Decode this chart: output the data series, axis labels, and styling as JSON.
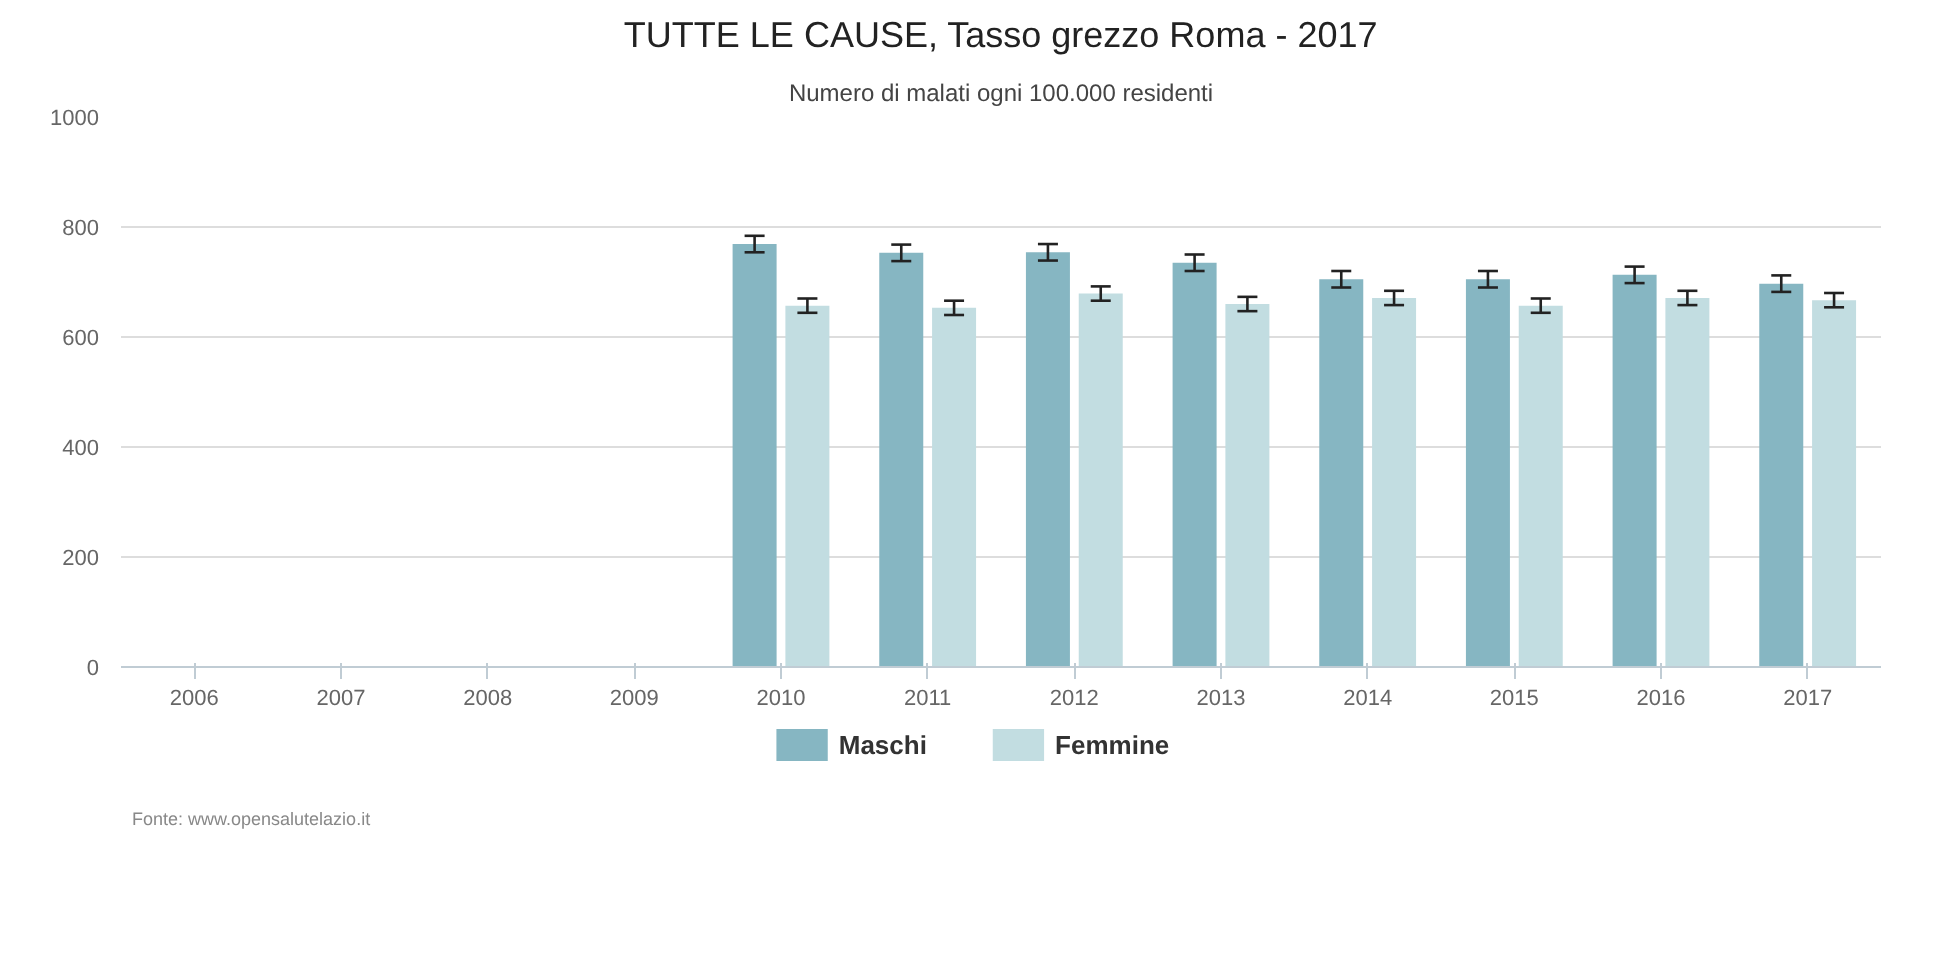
{
  "chart_data": {
    "type": "bar",
    "title": "TUTTE LE CAUSE, Tasso grezzo Roma - 2017",
    "subtitle": "Numero di malati ogni 100.000 residenti",
    "categories": [
      "2006",
      "2007",
      "2008",
      "2009",
      "2010",
      "2011",
      "2012",
      "2013",
      "2014",
      "2015",
      "2016",
      "2017"
    ],
    "series": [
      {
        "name": "Maschi",
        "color": "#86b6c2",
        "values": [
          null,
          null,
          null,
          null,
          769,
          753,
          754,
          735,
          705,
          705,
          713,
          697
        ],
        "errors": [
          null,
          null,
          null,
          null,
          15,
          15,
          15,
          15,
          15,
          15,
          15,
          15
        ]
      },
      {
        "name": "Femmine",
        "color": "#c2dde1",
        "values": [
          null,
          null,
          null,
          null,
          657,
          653,
          679,
          660,
          671,
          657,
          671,
          667
        ],
        "errors": [
          null,
          null,
          null,
          null,
          13,
          13,
          13,
          13,
          13,
          13,
          13,
          13
        ]
      }
    ],
    "ylim": [
      0,
      1000
    ],
    "yticks": [
      0,
      200,
      400,
      600,
      800,
      1000
    ],
    "grid": "y",
    "legend": "bottom",
    "annotations": [
      "Fonte: www.opensalutelazio.it"
    ]
  }
}
